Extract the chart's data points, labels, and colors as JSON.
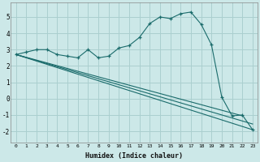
{
  "xlabel": "Humidex (Indice chaleur)",
  "bg_color": "#cce8e8",
  "grid_color": "#aacfcf",
  "line_color": "#1a6b6b",
  "marker": "+",
  "xlim": [
    -0.5,
    23.5
  ],
  "ylim": [
    -2.7,
    5.9
  ],
  "xticks": [
    0,
    1,
    2,
    3,
    4,
    5,
    6,
    7,
    8,
    9,
    10,
    11,
    12,
    13,
    14,
    15,
    16,
    17,
    18,
    19,
    20,
    21,
    22,
    23
  ],
  "yticks": [
    -2,
    -1,
    0,
    1,
    2,
    3,
    4,
    5
  ],
  "main_x": [
    0,
    1,
    2,
    3,
    4,
    5,
    6,
    7,
    8,
    9,
    10,
    11,
    12,
    13,
    14,
    15,
    16,
    17,
    18,
    19,
    20,
    21,
    22,
    23
  ],
  "main_y": [
    2.7,
    2.85,
    3.0,
    3.0,
    2.7,
    2.6,
    2.5,
    3.0,
    2.5,
    2.6,
    3.1,
    3.25,
    3.75,
    4.6,
    5.0,
    4.9,
    5.2,
    5.3,
    4.55,
    3.3,
    0.1,
    -1.05,
    -1.0,
    -1.9
  ],
  "line1_x": [
    0,
    22
  ],
  "line1_y": [
    2.7,
    -1.05
  ],
  "line2_x": [
    0,
    23
  ],
  "line2_y": [
    2.7,
    -1.55
  ],
  "line3_x": [
    0,
    23
  ],
  "line3_y": [
    2.7,
    -1.9
  ]
}
